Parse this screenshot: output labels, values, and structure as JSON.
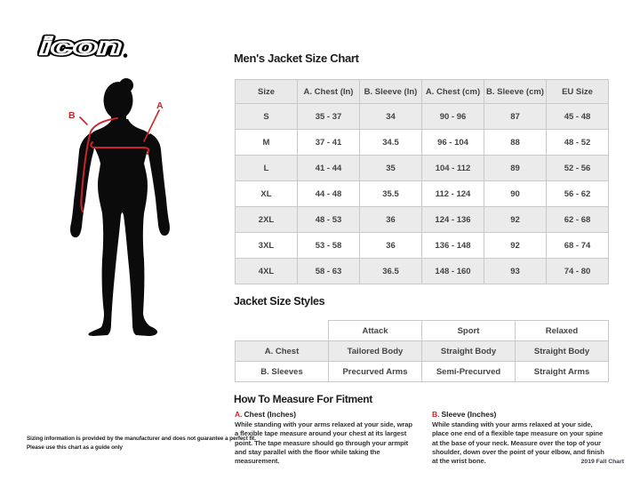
{
  "brand": {
    "logo_text": "icon"
  },
  "figure": {
    "label_a": "A",
    "label_b": "B"
  },
  "size_chart": {
    "title": "Men's Jacket Size Chart",
    "columns": [
      "Size",
      "A. Chest (In)",
      "B. Sleeve (In)",
      "A. Chest (cm)",
      "B. Sleeve (cm)",
      "EU Size"
    ],
    "rows": [
      [
        "S",
        "35 - 37",
        "34",
        "90 - 96",
        "87",
        "45 - 48"
      ],
      [
        "M",
        "37 - 41",
        "34.5",
        "96 - 104",
        "88",
        "48 - 52"
      ],
      [
        "L",
        "41 - 44",
        "35",
        "104 - 112",
        "89",
        "52 - 56"
      ],
      [
        "XL",
        "44 - 48",
        "35.5",
        "112 - 124",
        "90",
        "56 - 62"
      ],
      [
        "2XL",
        "48 - 53",
        "36",
        "124 - 136",
        "92",
        "62 - 68"
      ],
      [
        "3XL",
        "53 - 58",
        "36",
        "136 - 148",
        "92",
        "68 - 74"
      ],
      [
        "4XL",
        "58 - 63",
        "36.5",
        "148 - 160",
        "93",
        "74 - 80"
      ]
    ]
  },
  "styles_table": {
    "title": "Jacket Size Styles",
    "columns": [
      "",
      "Attack",
      "Sport",
      "Relaxed"
    ],
    "rows": [
      [
        "A. Chest",
        "Tailored Body",
        "Straight Body",
        "Straight Body"
      ],
      [
        "B. Sleeves",
        "Precurved Arms",
        "Semi-Precurved",
        "Straight Arms"
      ]
    ]
  },
  "fitment": {
    "title": "How To Measure For Fitment",
    "sections": [
      {
        "letter": "A.",
        "heading": "Chest (Inches)",
        "body": "While standing with your arms relaxed at your side, wrap a flexible tape measure around your chest at its largest point. The tape measure should go through your armpit and stay parallel with the floor while taking the measurement."
      },
      {
        "letter": "B.",
        "heading": "Sleeve (Inches)",
        "body": "While standing with your arms relaxed at your side, place one end of a flexible tape measure on your spine at the base of your neck. Measure over the top of your shoulder, down over the point of your elbow, and finish at the wrist bone."
      }
    ]
  },
  "footer": {
    "note_line1": "Sizing information is provided by the manufacturer and does not guarantee a perfect fit.",
    "note_line2": "Please use this chart as a guide only",
    "version": "2019 Fall Chart"
  },
  "colors": {
    "accent_red": "#c9252b",
    "row_gray": "#ebebeb",
    "header_gray": "#e9e9e9",
    "border_gray": "#c9c9c9",
    "silhouette_black": "#0b0b0b"
  }
}
